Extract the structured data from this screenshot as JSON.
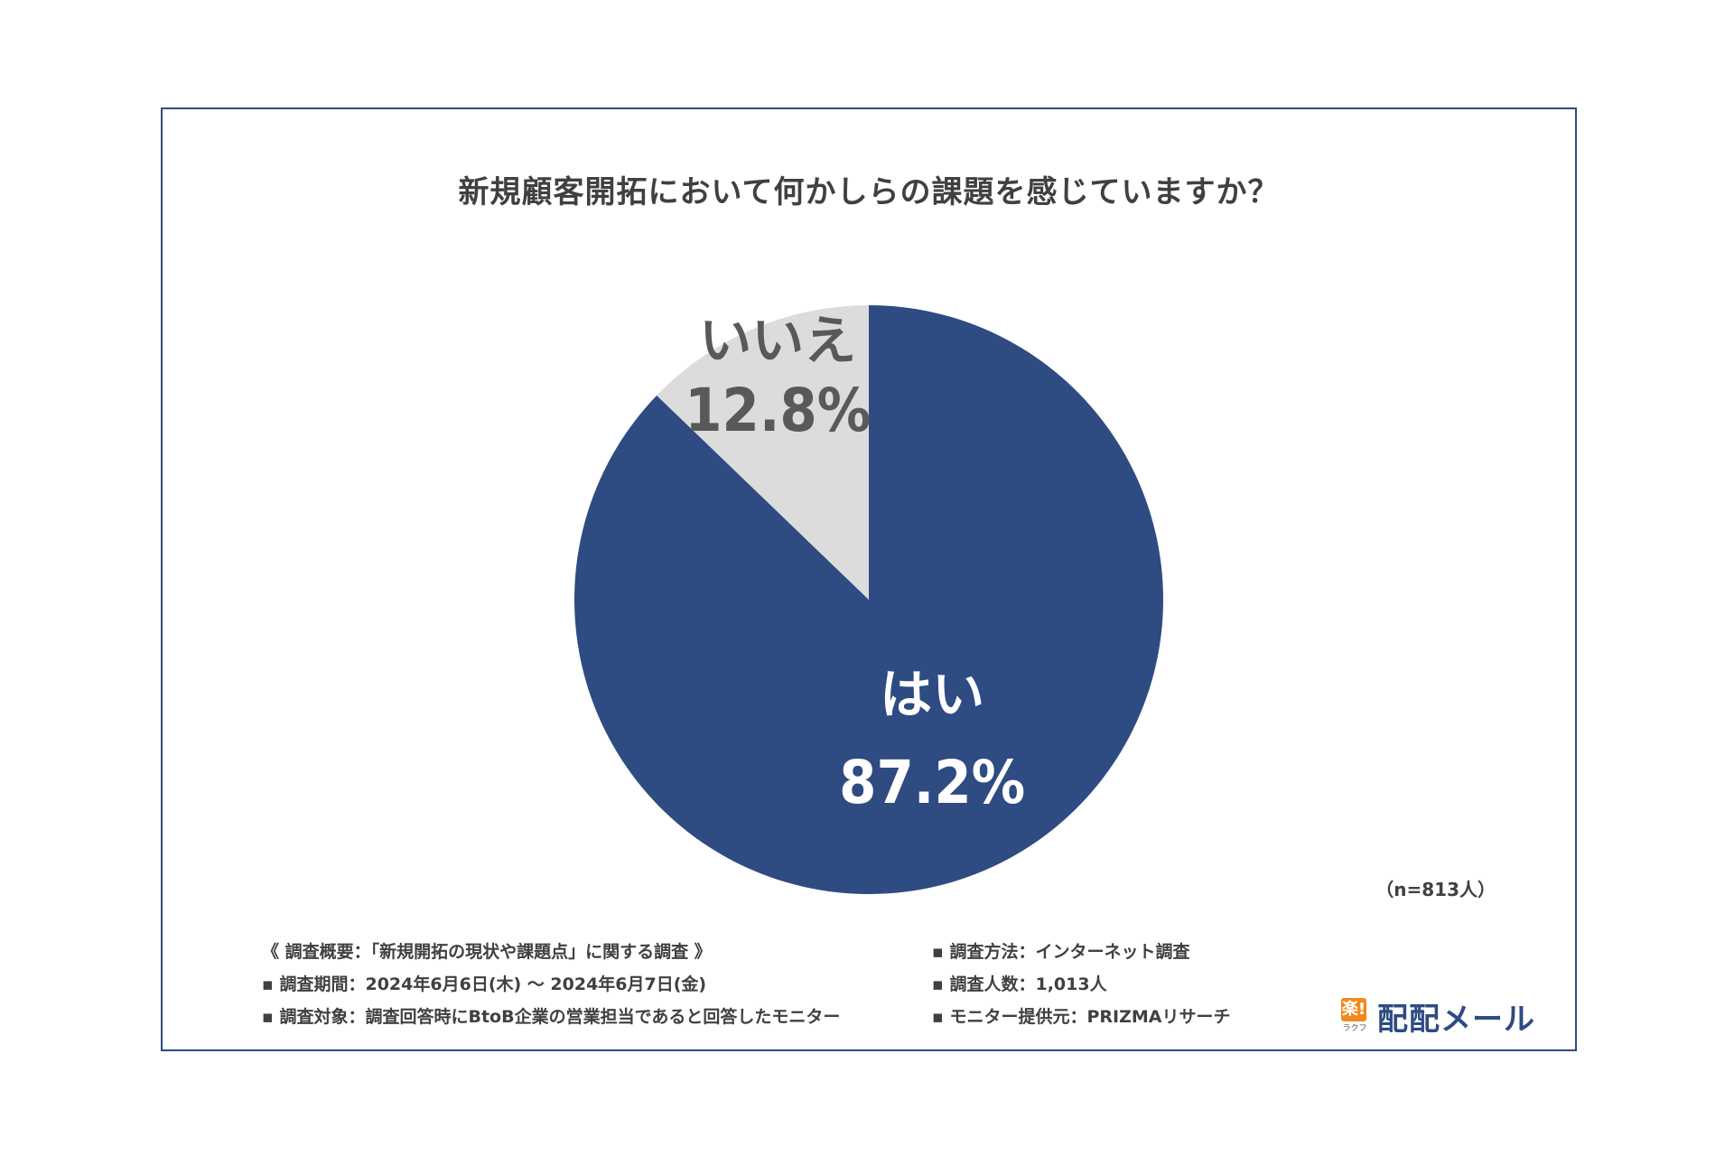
{
  "chart_data": {
    "type": "pie",
    "title": "新規顧客開拓において何かしらの課題を感じていますか？",
    "slices": [
      {
        "name": "はい",
        "value": 87.2,
        "label": "87.2%",
        "color": "#2e4b82",
        "text_color": "#ffffff"
      },
      {
        "name": "いいえ",
        "value": 12.8,
        "label": "12.8%",
        "color": "#dcdcdc",
        "text_color": "#595959"
      }
    ],
    "sample_note": "（n=813人）"
  },
  "footer": {
    "left": [
      "《 調査概要：「新規開拓の現状や課題点」に関する調査 》",
      "▪ 調査期間：2024年6月6日(木) 〜 2024年6月7日(金)",
      "▪ 調査対象：調査回答時にBtoB企業の営業担当であると回答したモニター"
    ],
    "right": [
      "▪ 調査方法：インターネット調査",
      "▪ 調査人数：1,013人",
      "▪ モニター提供元：PRIZMAリサーチ"
    ]
  },
  "logo": {
    "mark": "楽!",
    "sub": "ラクフ",
    "text": "配配メール"
  }
}
